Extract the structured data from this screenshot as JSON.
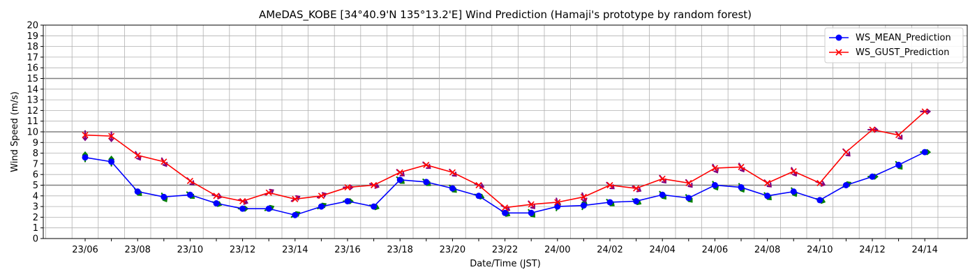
{
  "chart_data": {
    "type": "line",
    "title": "AMeDAS_KOBE [34°40.9'N 135°13.2'E] Wind Prediction (Hamaji's prototype by random forest)",
    "xlabel": "Date/Time (JST)",
    "ylabel": "Wind Speed (m/s)",
    "ylim": [
      0,
      20
    ],
    "yticks": [
      0,
      1,
      2,
      3,
      4,
      5,
      6,
      7,
      8,
      9,
      10,
      11,
      12,
      13,
      14,
      15,
      16,
      17,
      18,
      19,
      20
    ],
    "highlight_y_lines": [
      5,
      10,
      15
    ],
    "x_hours": [
      "23/06",
      "23/07",
      "23/08",
      "23/09",
      "23/10",
      "23/11",
      "23/12",
      "23/13",
      "23/14",
      "23/15",
      "23/16",
      "23/17",
      "23/18",
      "23/19",
      "23/20",
      "23/21",
      "23/22",
      "23/23",
      "24/00",
      "24/01",
      "24/02",
      "24/03",
      "24/04",
      "24/05",
      "24/06",
      "24/07",
      "24/08",
      "24/09",
      "24/10",
      "24/11",
      "24/12",
      "24/13",
      "24/14"
    ],
    "x_tick_labels": [
      "23/06",
      "23/08",
      "23/10",
      "23/12",
      "23/14",
      "23/16",
      "23/18",
      "23/20",
      "23/22",
      "24/00",
      "24/02",
      "24/04",
      "24/06",
      "24/08",
      "24/10",
      "24/12",
      "24/14"
    ],
    "grid": true,
    "legend_position": "top-right",
    "series": [
      {
        "name": "WS_MEAN_Prediction",
        "color": "#0000ff",
        "marker": "circle",
        "values": [
          7.6,
          7.2,
          4.4,
          3.9,
          4.1,
          3.3,
          2.8,
          2.8,
          2.2,
          3.0,
          3.5,
          3.0,
          5.5,
          5.3,
          4.7,
          4.0,
          2.4,
          2.4,
          3.0,
          3.1,
          3.4,
          3.5,
          4.1,
          3.8,
          5.0,
          4.8,
          4.0,
          4.4,
          3.6,
          5.0,
          5.8,
          6.9,
          8.1
        ],
        "direction_arrow_color": "#008000",
        "direction_angles_deg": [
          -90,
          -90,
          45,
          60,
          40,
          20,
          0,
          -25,
          -30,
          -30,
          0,
          20,
          40,
          40,
          45,
          20,
          30,
          50,
          -75,
          -70,
          40,
          30,
          50,
          50,
          60,
          60,
          45,
          60,
          20,
          -30,
          0,
          50,
          0
        ]
      },
      {
        "name": "WS_GUST_Prediction",
        "color": "#ff0000",
        "marker": "x",
        "values": [
          9.7,
          9.6,
          7.8,
          7.2,
          5.4,
          4.0,
          3.5,
          4.3,
          3.7,
          4.0,
          4.8,
          5.0,
          6.2,
          6.9,
          6.2,
          5.0,
          2.9,
          3.2,
          3.4,
          3.9,
          5.0,
          4.7,
          5.6,
          5.2,
          6.6,
          6.7,
          5.2,
          6.3,
          5.2,
          8.1,
          10.2,
          9.7,
          11.9
        ],
        "direction_arrow_color": "#800080",
        "direction_angles_deg": [
          90,
          90,
          60,
          60,
          45,
          15,
          20,
          -30,
          -30,
          -25,
          0,
          20,
          40,
          40,
          45,
          20,
          30,
          50,
          75,
          70,
          40,
          30,
          50,
          50,
          60,
          60,
          45,
          60,
          20,
          45,
          0,
          50,
          0
        ]
      }
    ]
  }
}
